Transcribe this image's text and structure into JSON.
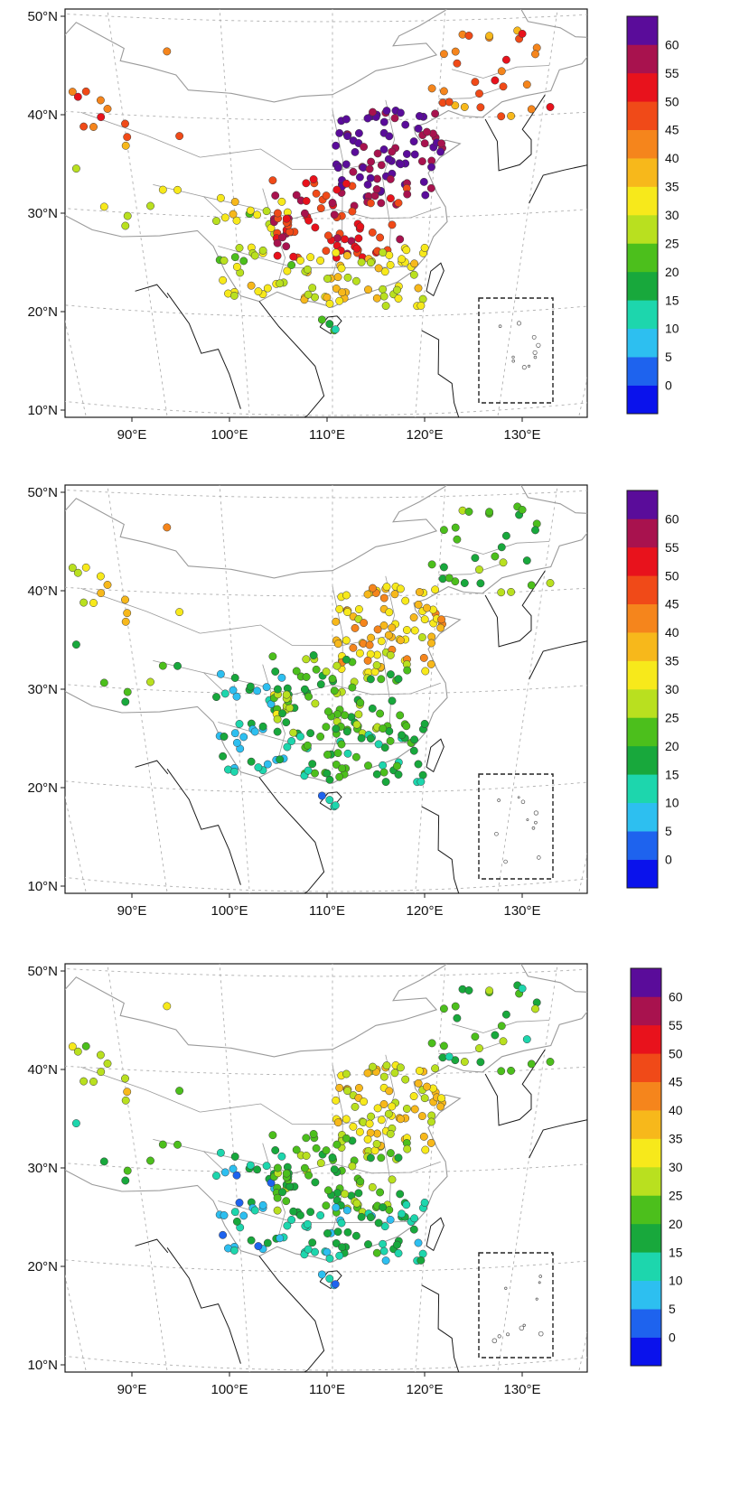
{
  "figure": {
    "colors": {
      "map_border": "#1a1a1a",
      "province_line": "#9a9a9a",
      "graticule": "#b0b0b0",
      "inset_box": "#222222",
      "background": "#ffffff"
    },
    "colorbar": {
      "tick_labels": [
        "0",
        "5",
        "10",
        "15",
        "20",
        "25",
        "30",
        "35",
        "40",
        "45",
        "50",
        "55",
        "60"
      ],
      "bins": [
        {
          "lower": null,
          "color": "#0a12ec"
        },
        {
          "lower": 0,
          "color": "#1e63ee"
        },
        {
          "lower": 5,
          "color": "#2dbff0"
        },
        {
          "lower": 10,
          "color": "#1dd6ad"
        },
        {
          "lower": 15,
          "color": "#18a83c"
        },
        {
          "lower": 20,
          "color": "#4cbf1c"
        },
        {
          "lower": 25,
          "color": "#b9e01f"
        },
        {
          "lower": 30,
          "color": "#f7e91b"
        },
        {
          "lower": 35,
          "color": "#f7b81b"
        },
        {
          "lower": 40,
          "color": "#f5851c"
        },
        {
          "lower": 45,
          "color": "#f04a18"
        },
        {
          "lower": 50,
          "color": "#e8121c"
        },
        {
          "lower": 55,
          "color": "#a8124e"
        },
        {
          "lower": 60,
          "color": "#5a0c9a"
        }
      ]
    },
    "axes": {
      "lat_labels": [
        "10°N",
        "20°N",
        "30°N",
        "40°N",
        "50°N"
      ],
      "lon_labels": [
        "90°E",
        "100°E",
        "110°E",
        "120°E",
        "130°E"
      ]
    },
    "panels": [
      {
        "id": "panel-1",
        "description": "stations colored by value, high values in north China plain"
      },
      {
        "id": "panel-2",
        "description": "stations colored by value, moderate values"
      },
      {
        "id": "panel-3",
        "description": "stations colored by value, moderate values"
      }
    ]
  },
  "chart_data": [
    {
      "type": "scatter",
      "title": "",
      "xlabel": "",
      "ylabel": "",
      "xlim": [
        85,
        135
      ],
      "ylim": [
        10,
        50
      ],
      "x_ticks": [
        "90°E",
        "100°E",
        "110°E",
        "120°E",
        "130°E"
      ],
      "y_ticks": [
        "10°N",
        "20°N",
        "30°N",
        "40°N",
        "50°N"
      ],
      "region_values": {
        "northwest": 45,
        "tibet": 30,
        "sichuan_yunnan": 30,
        "north_china_plain": 62,
        "central": 52,
        "south": 33,
        "hainan": 18,
        "northeast": 45
      }
    },
    {
      "type": "scatter",
      "title": "",
      "xlabel": "",
      "ylabel": "",
      "xlim": [
        85,
        135
      ],
      "ylim": [
        10,
        50
      ],
      "x_ticks": [
        "90°E",
        "100°E",
        "110°E",
        "120°E",
        "130°E"
      ],
      "y_ticks": [
        "10°N",
        "20°N",
        "30°N",
        "40°N",
        "50°N"
      ],
      "region_values": {
        "northwest": 35,
        "tibet": 22,
        "sichuan_yunnan": 12,
        "north_china_plain": 36,
        "central": 24,
        "south": 18,
        "hainan": 10,
        "northeast": 22
      }
    },
    {
      "type": "scatter",
      "title": "",
      "xlabel": "",
      "ylabel": "",
      "xlim": [
        85,
        135
      ],
      "ylim": [
        10,
        50
      ],
      "x_ticks": [
        "90°E",
        "100°E",
        "110°E",
        "120°E",
        "130°E"
      ],
      "y_ticks": [
        "10°N",
        "20°N",
        "30°N",
        "40°N",
        "50°N"
      ],
      "region_values": {
        "northwest": 30,
        "tibet": 20,
        "sichuan_yunnan": 10,
        "north_china_plain": 32,
        "central": 22,
        "south": 14,
        "hainan": 8,
        "northeast": 20
      }
    }
  ]
}
